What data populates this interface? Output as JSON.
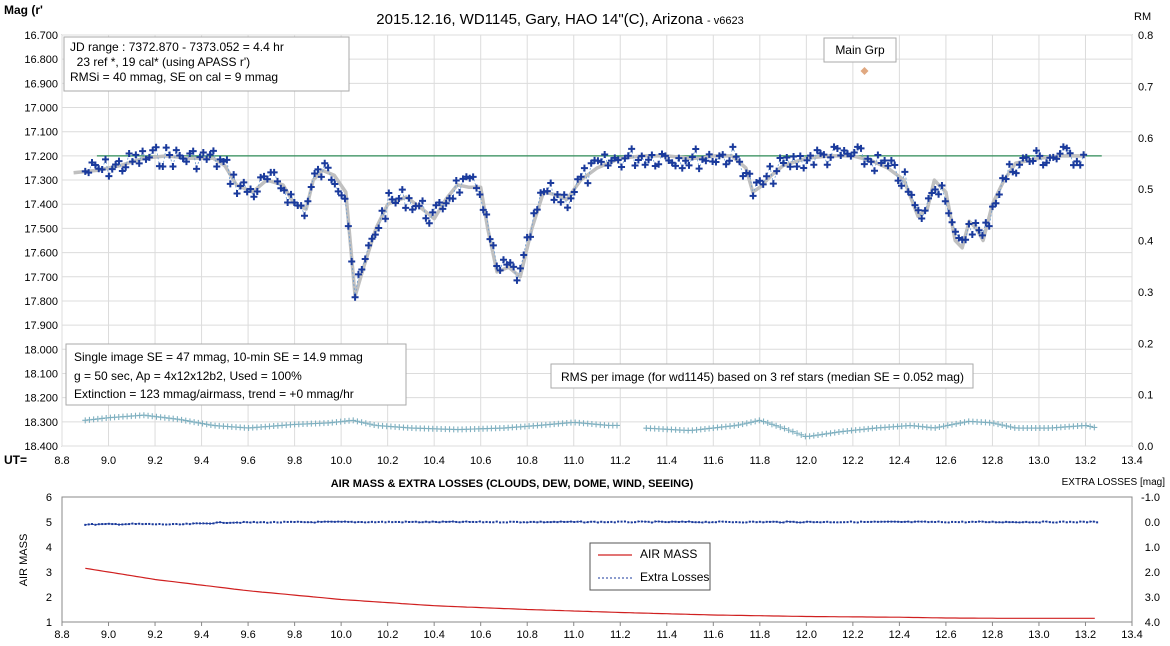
{
  "colors": {
    "light_curve": "#1a3a9c",
    "trend": "#c0c0c0",
    "ref_line": "#2e8b57",
    "rms": "#7fb0c0",
    "main_grp": "#e0a880",
    "airmass": "#d02020",
    "losses": "#1a3a9c",
    "grid": "#dcdcdc"
  },
  "upper": {
    "title": "2015.12.16,  WD1145, Gary, HAO  14\"(C), Arizona",
    "title_version": "- v6623",
    "ylabel": "Mag (r'",
    "y2label": "RM",
    "xlabel": "UT=",
    "info_top": [
      "JD range  : 7372.870 - 7373.052  = 4.4 hr",
      "  23 ref *, 19 cal* (using APASS r')",
      "RMSi = 40 mmag, SE on cal = 9 mmag"
    ],
    "info_bottom": [
      "Single image SE = 47 mmag, 10-min  SE = 14.9 mmag",
      "g = 50 sec, Ap = 4x12x12b2, Used = 100%",
      "Extinction = 123 mmag/airmass, trend = +0 mmag/hr"
    ],
    "rms_note": "RMS per image (for wd1145) based on 3 ref stars (median SE = 0.052 mag)",
    "main_grp_label": "Main Grp",
    "xticks": [
      "8.8",
      "9.0",
      "9.2",
      "9.4",
      "9.6",
      "9.8",
      "10.0",
      "10.2",
      "10.4",
      "10.6",
      "10.8",
      "11.0",
      "11.2",
      "11.4",
      "11.6",
      "11.8",
      "12.0",
      "12.2",
      "12.4",
      "12.6",
      "12.8",
      "13.0",
      "13.2",
      "13.4"
    ],
    "yticks": [
      "16.700",
      "16.800",
      "16.900",
      "17.000",
      "17.100",
      "17.200",
      "17.300",
      "17.400",
      "17.500",
      "17.600",
      "17.700",
      "17.800",
      "17.900",
      "18.000",
      "18.100",
      "18.200",
      "18.300",
      "18.400"
    ],
    "y2ticks": [
      "0.8",
      "0.7",
      "0.6",
      "0.5",
      "0.4",
      "0.3",
      "0.2",
      "0.1",
      "0.0"
    ]
  },
  "lower": {
    "title": "AIR MASS & EXTRA LOSSES (CLOUDS, DEW, DOME, WIND, SEEING)",
    "ylabel": "AIR MASS",
    "y2label": "EXTRA LOSSES [mag]",
    "xticks": [
      "8.8",
      "9.0",
      "9.2",
      "9.4",
      "9.6",
      "9.8",
      "10.0",
      "10.2",
      "10.4",
      "10.6",
      "10.8",
      "11.0",
      "11.2",
      "11.4",
      "11.6",
      "11.8",
      "12.0",
      "12.2",
      "12.4",
      "12.6",
      "12.8",
      "13.0",
      "13.2",
      "13.4"
    ],
    "yticks": [
      "6",
      "5",
      "4",
      "3",
      "2",
      "1"
    ],
    "y2ticks": [
      "-1.0",
      "0.0",
      "1.0",
      "2.0",
      "3.0",
      "4.0"
    ],
    "legend": [
      "AIR MASS",
      "Extra Losses"
    ]
  },
  "chart_data": [
    {
      "type": "scatter",
      "title": "2015.12.16,  WD1145, Gary, HAO  14\"(C), Arizona",
      "xlabel": "UT=",
      "ylabel": "Mag (r'",
      "y2label": "RM",
      "xlim": [
        8.8,
        13.4
      ],
      "ylim": [
        18.4,
        16.7
      ],
      "y2lim": [
        0.0,
        0.8
      ],
      "reference_level": 17.2,
      "main_grp": {
        "x": 12.25,
        "rm": 0.73
      },
      "trend_knots": [
        [
          8.85,
          17.27
        ],
        [
          8.95,
          17.26
        ],
        [
          9.05,
          17.24
        ],
        [
          9.15,
          17.21
        ],
        [
          9.25,
          17.2
        ],
        [
          9.35,
          17.21
        ],
        [
          9.45,
          17.21
        ],
        [
          9.5,
          17.24
        ],
        [
          9.55,
          17.32
        ],
        [
          9.62,
          17.35
        ],
        [
          9.68,
          17.3
        ],
        [
          9.75,
          17.32
        ],
        [
          9.8,
          17.4
        ],
        [
          9.85,
          17.42
        ],
        [
          9.88,
          17.3
        ],
        [
          9.92,
          17.26
        ],
        [
          9.97,
          17.28
        ],
        [
          10.02,
          17.35
        ],
        [
          10.06,
          17.78
        ],
        [
          10.1,
          17.65
        ],
        [
          10.15,
          17.5
        ],
        [
          10.2,
          17.4
        ],
        [
          10.28,
          17.37
        ],
        [
          10.35,
          17.42
        ],
        [
          10.4,
          17.46
        ],
        [
          10.45,
          17.38
        ],
        [
          10.5,
          17.32
        ],
        [
          10.55,
          17.33
        ],
        [
          10.6,
          17.33
        ],
        [
          10.63,
          17.5
        ],
        [
          10.67,
          17.68
        ],
        [
          10.72,
          17.66
        ],
        [
          10.77,
          17.7
        ],
        [
          10.82,
          17.5
        ],
        [
          10.87,
          17.35
        ],
        [
          10.92,
          17.36
        ],
        [
          10.97,
          17.38
        ],
        [
          11.03,
          17.3
        ],
        [
          11.1,
          17.25
        ],
        [
          11.2,
          17.21
        ],
        [
          11.3,
          17.2
        ],
        [
          11.4,
          17.2
        ],
        [
          11.5,
          17.21
        ],
        [
          11.55,
          17.21
        ],
        [
          11.6,
          17.2
        ],
        [
          11.68,
          17.2
        ],
        [
          11.74,
          17.25
        ],
        [
          11.77,
          17.35
        ],
        [
          11.8,
          17.33
        ],
        [
          11.85,
          17.28
        ],
        [
          11.9,
          17.24
        ],
        [
          12.0,
          17.21
        ],
        [
          12.1,
          17.2
        ],
        [
          12.2,
          17.2
        ],
        [
          12.28,
          17.22
        ],
        [
          12.35,
          17.25
        ],
        [
          12.42,
          17.3
        ],
        [
          12.48,
          17.45
        ],
        [
          12.52,
          17.42
        ],
        [
          12.55,
          17.3
        ],
        [
          12.6,
          17.35
        ],
        [
          12.64,
          17.55
        ],
        [
          12.67,
          17.58
        ],
        [
          12.7,
          17.47
        ],
        [
          12.73,
          17.5
        ],
        [
          12.76,
          17.55
        ],
        [
          12.8,
          17.4
        ],
        [
          12.85,
          17.3
        ],
        [
          12.9,
          17.23
        ],
        [
          13.0,
          17.21
        ],
        [
          13.1,
          17.2
        ],
        [
          13.2,
          17.2
        ]
      ],
      "rms_knots": [
        [
          8.9,
          0.05
        ],
        [
          9.0,
          0.055
        ],
        [
          9.15,
          0.06
        ],
        [
          9.3,
          0.052
        ],
        [
          9.45,
          0.04
        ],
        [
          9.6,
          0.035
        ],
        [
          9.8,
          0.042
        ],
        [
          9.95,
          0.045
        ],
        [
          10.05,
          0.05
        ],
        [
          10.15,
          0.04
        ],
        [
          10.3,
          0.035
        ],
        [
          10.5,
          0.032
        ],
        [
          10.7,
          0.035
        ],
        [
          10.85,
          0.04
        ],
        [
          11.0,
          0.046
        ],
        [
          11.15,
          0.04
        ],
        [
          11.2,
          0.04
        ],
        [
          11.25,
          null
        ],
        [
          11.3,
          0.035
        ],
        [
          11.5,
          0.03
        ],
        [
          11.7,
          0.04
        ],
        [
          11.8,
          0.05
        ],
        [
          11.9,
          0.035
        ],
        [
          12.0,
          0.018
        ],
        [
          12.15,
          0.028
        ],
        [
          12.3,
          0.035
        ],
        [
          12.45,
          0.04
        ],
        [
          12.55,
          0.035
        ],
        [
          12.7,
          0.048
        ],
        [
          12.8,
          0.045
        ],
        [
          12.9,
          0.035
        ],
        [
          13.05,
          0.035
        ],
        [
          13.2,
          0.04
        ],
        [
          13.25,
          0.035
        ]
      ]
    },
    {
      "type": "line",
      "title": "AIR MASS & EXTRA LOSSES (CLOUDS, DEW, DOME, WIND, SEEING)",
      "ylabel": "AIR MASS",
      "y2label": "EXTRA LOSSES [mag]",
      "xlim": [
        8.8,
        13.4
      ],
      "ylim": [
        1,
        6
      ],
      "y2lim": [
        4.0,
        -1.0
      ],
      "series": [
        {
          "name": "AIR MASS",
          "x": [
            8.9,
            9.2,
            9.6,
            10.0,
            10.4,
            10.8,
            11.2,
            11.6,
            12.0,
            12.4,
            12.6,
            12.8,
            13.0,
            13.25
          ],
          "values": [
            3.15,
            2.7,
            2.25,
            1.9,
            1.65,
            1.5,
            1.38,
            1.28,
            1.22,
            1.19,
            1.16,
            1.15,
            1.15,
            1.15
          ]
        },
        {
          "name": "Extra Losses",
          "x": [
            8.9,
            9.1,
            9.3,
            9.5,
            10.0,
            11.0,
            12.0,
            13.0,
            13.25
          ],
          "values": [
            0.1,
            0.08,
            0.1,
            0.02,
            0.0,
            0.0,
            0.0,
            0.0,
            0.0
          ]
        }
      ]
    }
  ]
}
